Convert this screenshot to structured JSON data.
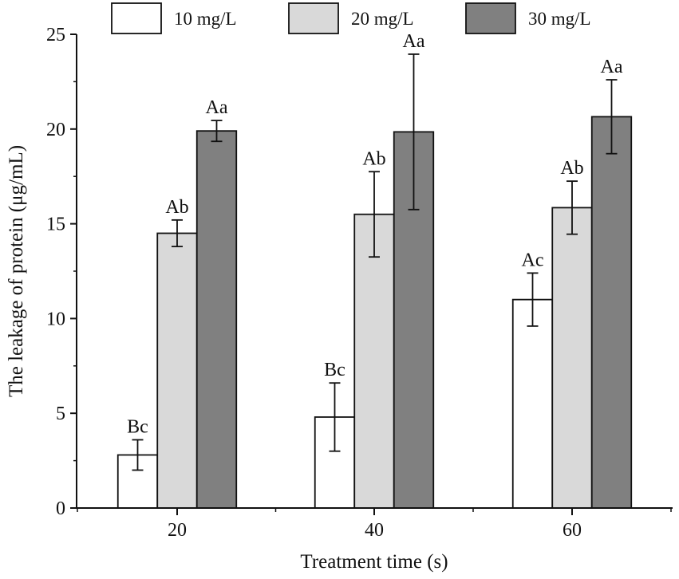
{
  "chart_data": {
    "type": "bar",
    "title": "",
    "xlabel": "Treatment time (s)",
    "ylabel": "The leakage of protein (μg/mL)",
    "categories": [
      "20",
      "40",
      "60"
    ],
    "ylim": [
      0,
      25
    ],
    "yticks": [
      0,
      5,
      10,
      15,
      20,
      25
    ],
    "legend_position": "top",
    "series": [
      {
        "name": "10 mg/L",
        "color": "#ffffff",
        "values": [
          2.8,
          4.8,
          11.0
        ],
        "errors": [
          0.8,
          1.8,
          1.4
        ],
        "labels": [
          "Bc",
          "Bc",
          "Ac"
        ]
      },
      {
        "name": "20 mg/L",
        "color": "#d9d9d9",
        "values": [
          14.5,
          15.5,
          15.85
        ],
        "errors": [
          0.7,
          2.25,
          1.4
        ],
        "labels": [
          "Ab",
          "Ab",
          "Ab"
        ]
      },
      {
        "name": "30 mg/L",
        "color": "#808080",
        "values": [
          19.9,
          19.85,
          20.65
        ],
        "errors": [
          0.55,
          4.1,
          1.95
        ],
        "labels": [
          "Aa",
          "Aa",
          "Aa"
        ]
      }
    ]
  }
}
